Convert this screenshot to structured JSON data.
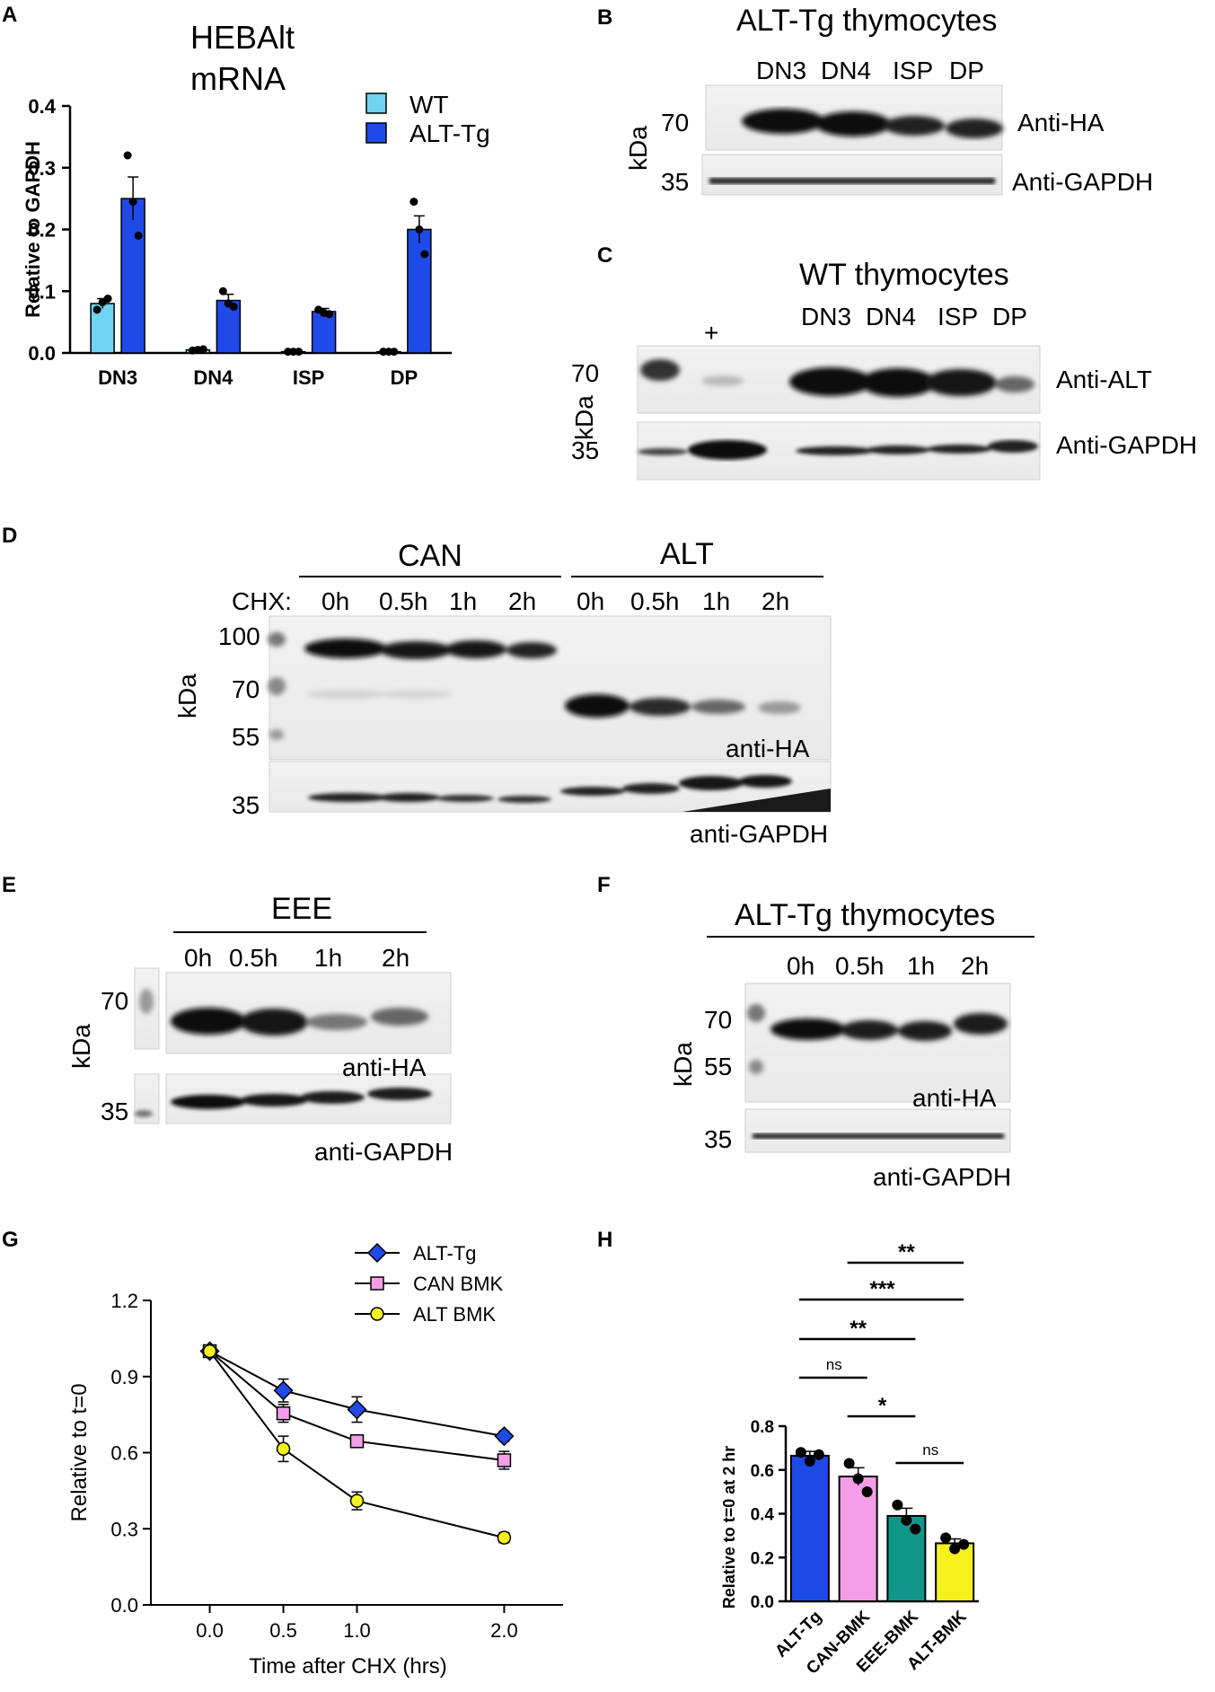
{
  "panels": {
    "A": {
      "letter": "A",
      "title_lines": [
        "HEBAlt",
        "mRNA"
      ],
      "legend": [
        "WT",
        "ALT-Tg"
      ]
    },
    "B": {
      "letter": "B",
      "title": "ALT-Tg thymocytes",
      "lanes": [
        "DN3",
        "DN4",
        "ISP",
        "DP"
      ],
      "markers": [
        "70",
        "35"
      ],
      "kda": "kDa",
      "bands": [
        "Anti-HA",
        "Anti-GAPDH"
      ]
    },
    "C": {
      "letter": "C",
      "title": "WT thymocytes",
      "control_lane": "+",
      "lanes": [
        "DN3",
        "DN4",
        "ISP",
        "DP"
      ],
      "markers": [
        "70",
        "35"
      ],
      "kda": "kDa",
      "bands": [
        "Anti-ALT",
        "Anti-GAPDH"
      ]
    },
    "D": {
      "letter": "D",
      "groups": [
        "CAN",
        "ALT"
      ],
      "chx_label": "CHX:",
      "times": [
        "0h",
        "0.5h",
        "1h",
        "2h"
      ],
      "markers": [
        "100",
        "70",
        "55",
        "35"
      ],
      "kda": "kDa",
      "bands": [
        "anti-HA",
        "anti-GAPDH"
      ]
    },
    "E": {
      "letter": "E",
      "group": "EEE",
      "times": [
        "0h",
        "0.5h",
        "1h",
        "2h"
      ],
      "markers": [
        "70",
        "35"
      ],
      "kda": "kDa",
      "bands": [
        "anti-HA",
        "anti-GAPDH"
      ]
    },
    "F": {
      "letter": "F",
      "title": "ALT-Tg thymocytes",
      "times": [
        "0h",
        "0.5h",
        "1h",
        "2h"
      ],
      "markers": [
        "70",
        "55",
        "35"
      ],
      "kda": "kDa",
      "bands": [
        "anti-HA",
        "anti-GAPDH"
      ]
    },
    "G": {
      "letter": "G"
    },
    "H": {
      "letter": "H",
      "brackets": [
        {
          "from": 1,
          "to": 3,
          "label": "**"
        },
        {
          "from": 0,
          "to": 3,
          "label": "***"
        },
        {
          "from": 0,
          "to": 2,
          "label": "**"
        },
        {
          "from": 0,
          "to": 1,
          "label": "ns"
        },
        {
          "from": 1,
          "to": 2,
          "label": "*"
        },
        {
          "from": 2,
          "to": 3,
          "label": "ns"
        }
      ]
    }
  },
  "chart_data": [
    {
      "panel": "A",
      "type": "bar",
      "categories": [
        "DN3",
        "DN4",
        "ISP",
        "DP"
      ],
      "ylabel": "Relative to GAPDH",
      "ylim": [
        0,
        0.4
      ],
      "yticks": [
        "0.0",
        "0.1",
        "0.2",
        "0.3",
        "0.4"
      ],
      "series": [
        {
          "name": "WT",
          "color": "#6fd4ef",
          "values": [
            0.08,
            0.005,
            0.002,
            0.002
          ],
          "errors": [
            0.008,
            0.001,
            0.001,
            0.001
          ],
          "points": [
            [
              0.07,
              0.082,
              0.088
            ],
            [
              0.004,
              0.005,
              0.006
            ],
            [
              0.002,
              0.002,
              0.002
            ],
            [
              0.002,
              0.002,
              0.002
            ]
          ]
        },
        {
          "name": "ALT-Tg",
          "color": "#1f4ae8",
          "values": [
            0.25,
            0.085,
            0.067,
            0.2
          ],
          "errors": [
            0.035,
            0.01,
            0.005,
            0.022
          ],
          "points": [
            [
              0.32,
              0.245,
              0.19
            ],
            [
              0.1,
              0.08,
              0.075
            ],
            [
              0.07,
              0.065,
              0.063
            ],
            [
              0.245,
              0.2,
              0.16
            ]
          ]
        }
      ]
    },
    {
      "panel": "G",
      "type": "line",
      "xlabel": "Time after CHX (hrs)",
      "ylabel": "Relative to t=0",
      "xlim": [
        -0.4,
        2.4
      ],
      "ylim": [
        0,
        1.2
      ],
      "xticks": [
        "0.0",
        "0.5",
        "1.0",
        "2.0"
      ],
      "yticks": [
        "0.0",
        "0.3",
        "0.6",
        "0.9",
        "1.2"
      ],
      "x": [
        0,
        0.5,
        1.0,
        2.0
      ],
      "series": [
        {
          "name": "ALT-Tg",
          "marker": "diamond",
          "color": "#1f4ae8",
          "values": [
            1.0,
            0.845,
            0.77,
            0.665
          ],
          "errors": [
            0.01,
            0.045,
            0.05,
            0.02
          ]
        },
        {
          "name": "CAN BMK",
          "marker": "square",
          "color": "#f59ee8",
          "values": [
            1.0,
            0.755,
            0.645,
            0.57
          ],
          "errors": [
            0.01,
            0.035,
            0.015,
            0.035
          ]
        },
        {
          "name": "ALT BMK",
          "marker": "circle",
          "color": "#f7f01f",
          "values": [
            1.0,
            0.615,
            0.41,
            0.265
          ],
          "errors": [
            0.01,
            0.05,
            0.035,
            0.02
          ]
        }
      ]
    },
    {
      "panel": "H",
      "type": "bar",
      "categories": [
        "ALT-Tg",
        "CAN-BMK",
        "EEE-BMK",
        "ALT-BMK"
      ],
      "ylabel": "Relative to t=0 at 2 hr",
      "ylim": [
        0,
        0.8
      ],
      "yticks": [
        "0.0",
        "0.2",
        "0.4",
        "0.6",
        "0.8"
      ],
      "values": [
        0.665,
        0.57,
        0.39,
        0.265
      ],
      "errors": [
        0.02,
        0.04,
        0.035,
        0.02
      ],
      "colors": [
        "#1f4ae8",
        "#f59ee8",
        "#12968a",
        "#f7f01f"
      ],
      "points": [
        [
          0.68,
          0.64,
          0.67
        ],
        [
          0.63,
          0.56,
          0.5
        ],
        [
          0.44,
          0.37,
          0.33
        ],
        [
          0.29,
          0.24,
          0.26
        ]
      ]
    }
  ]
}
